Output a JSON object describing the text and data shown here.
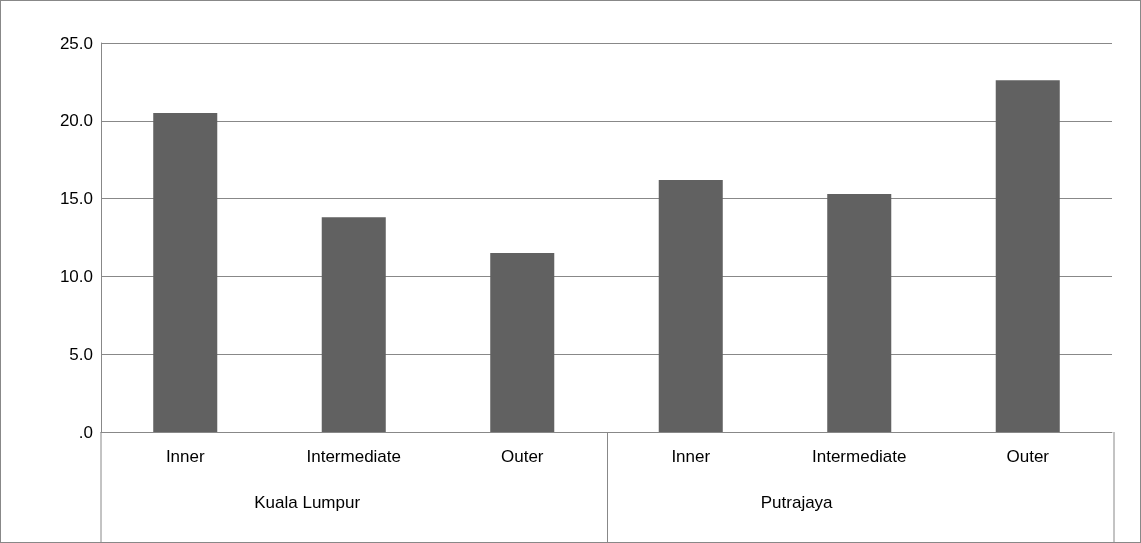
{
  "chart_data": {
    "type": "bar",
    "categories": [
      "Inner",
      "Intermediate",
      "Outer",
      "Inner",
      "Intermediate",
      "Outer"
    ],
    "values": [
      20.5,
      13.8,
      11.5,
      16.2,
      15.3,
      22.6
    ],
    "color": "#616161",
    "ylim": [
      0,
      25
    ],
    "yticks": [
      {
        "value": 0,
        "label": ".0"
      },
      {
        "value": 5,
        "label": "5.0"
      },
      {
        "value": 10,
        "label": "10.0"
      },
      {
        "value": 15,
        "label": "15.0"
      },
      {
        "value": 20,
        "label": "20.0"
      },
      {
        "value": 25,
        "label": "25.0"
      }
    ],
    "grid": "y",
    "annotations": [
      "Kuala Lumpur",
      "Putrajaya"
    ]
  }
}
